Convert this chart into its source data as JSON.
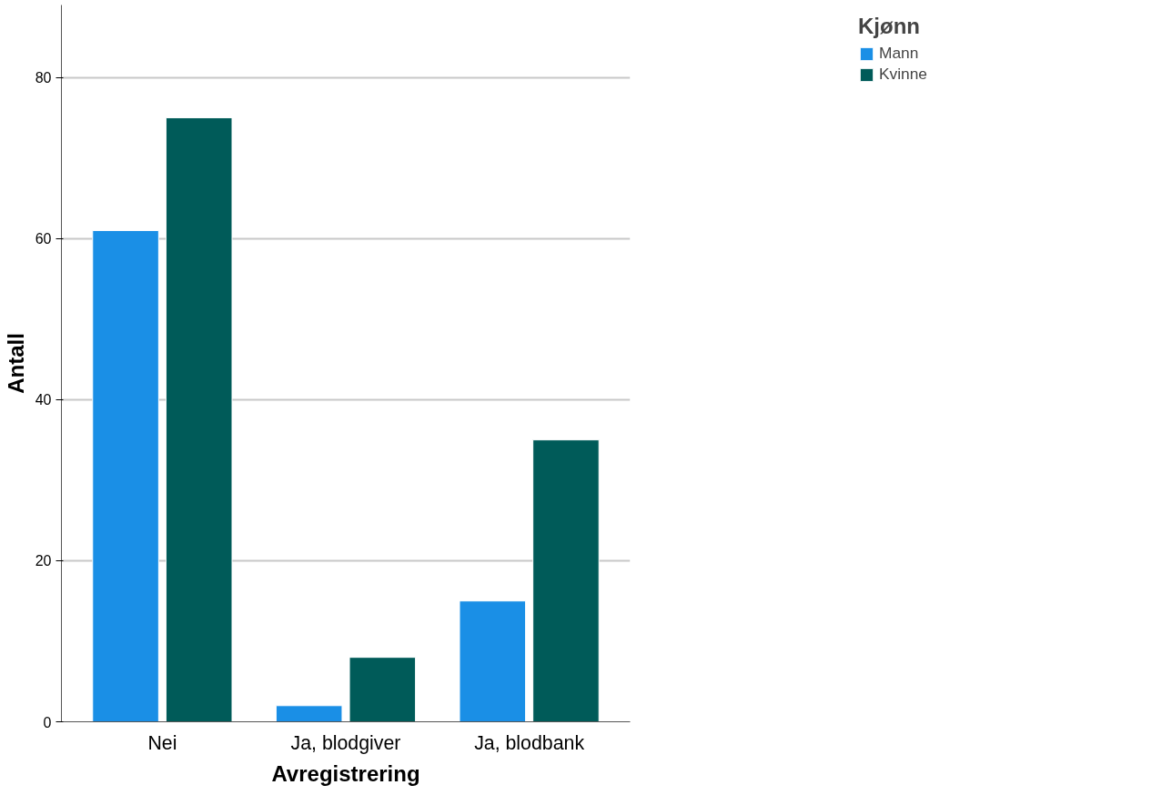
{
  "chart_data": {
    "type": "bar",
    "xlabel": "Avregistrering",
    "ylabel": "Antall",
    "legend_title": "Kjønn",
    "categories": [
      "Nei",
      "Ja, blodgiver",
      "Ja, blodbank"
    ],
    "series": [
      {
        "name": "Mann",
        "color": "#1a8fe6",
        "values": [
          61,
          2,
          15
        ]
      },
      {
        "name": "Kvinne",
        "color": "#005b59",
        "values": [
          75,
          8,
          35
        ]
      }
    ],
    "ylim": [
      0,
      89
    ],
    "yticks": [
      0,
      20,
      40,
      60,
      80
    ],
    "grid": "y",
    "legend": "top right"
  }
}
